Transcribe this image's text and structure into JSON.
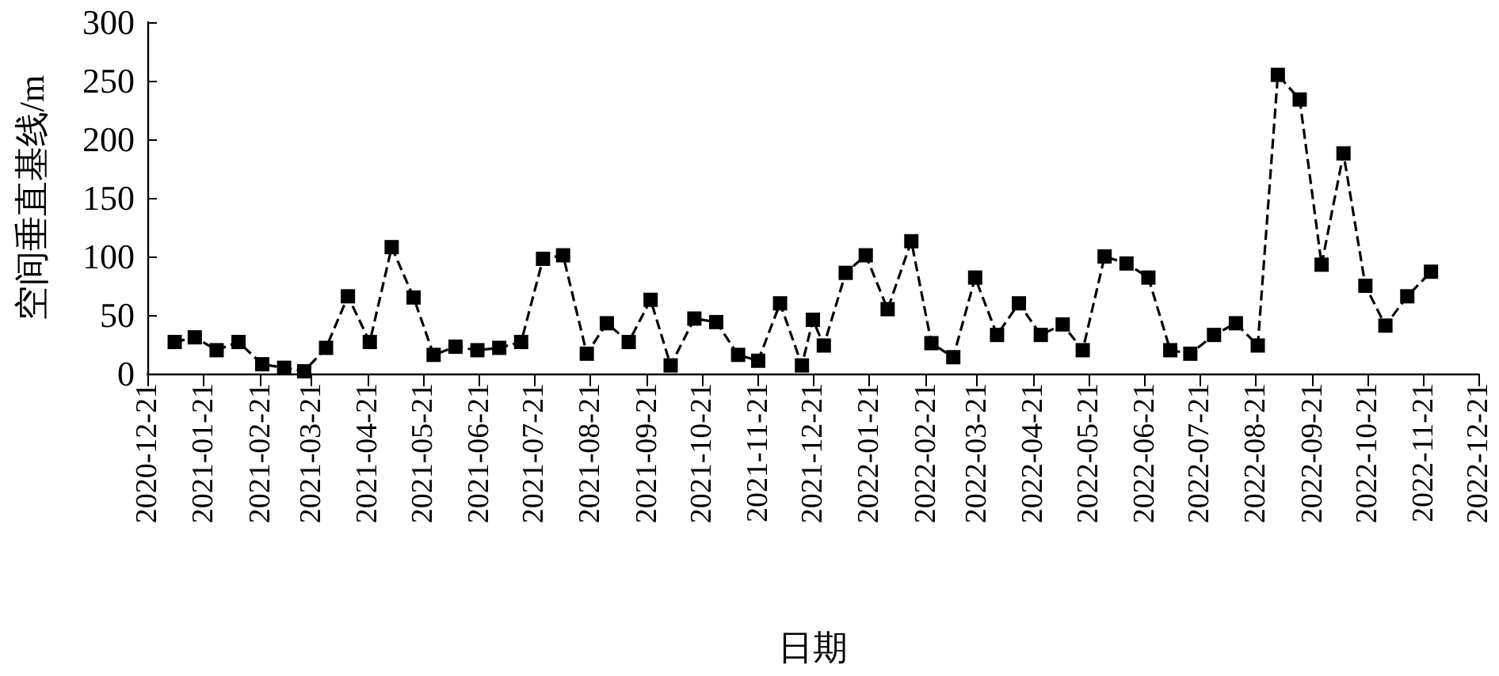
{
  "chart_data": {
    "type": "line",
    "xlabel": "日期",
    "ylabel": "空间垂直基线/m",
    "x": [
      "2021-01-05",
      "2021-01-16",
      "2021-01-28",
      "2021-02-09",
      "2021-02-22",
      "2021-03-06",
      "2021-03-17",
      "2021-03-29",
      "2021-04-10",
      "2021-04-22",
      "2021-05-04",
      "2021-05-16",
      "2021-05-27",
      "2021-06-08",
      "2021-06-20",
      "2021-07-02",
      "2021-07-14",
      "2021-07-26",
      "2021-08-06",
      "2021-08-19",
      "2021-08-30",
      "2021-09-11",
      "2021-09-23",
      "2021-10-04",
      "2021-10-17",
      "2021-10-29",
      "2021-11-10",
      "2021-11-21",
      "2021-12-03",
      "2021-12-15",
      "2021-12-21",
      "2021-12-27",
      "2022-01-08",
      "2022-01-19",
      "2022-01-31",
      "2022-02-13",
      "2022-02-24",
      "2022-03-08",
      "2022-03-20",
      "2022-04-01",
      "2022-04-13",
      "2022-04-25",
      "2022-05-07",
      "2022-05-18",
      "2022-05-30",
      "2022-06-11",
      "2022-06-23",
      "2022-07-05",
      "2022-07-16",
      "2022-07-29",
      "2022-08-10",
      "2022-08-22",
      "2022-09-02",
      "2022-09-14",
      "2022-09-26",
      "2022-10-08",
      "2022-10-20",
      "2022-10-31",
      "2022-11-12",
      "2022-11-25"
    ],
    "series": [
      {
        "color": "#000000",
        "values": [
          27,
          31,
          20,
          27,
          8,
          5,
          2,
          22,
          66,
          27,
          108,
          65,
          16,
          23,
          20,
          22,
          27,
          98,
          101,
          17,
          43,
          27,
          63,
          7,
          47,
          44,
          16,
          11,
          60,
          7,
          46,
          24,
          86,
          101,
          55,
          113,
          26,
          14,
          82,
          33,
          60,
          33,
          42,
          20,
          100,
          94,
          82,
          20,
          17,
          33,
          43,
          24,
          255,
          234,
          93,
          188,
          75,
          41,
          66,
          87
        ]
      }
    ],
    "xlim": [
      "2020-12-21",
      "2022-12-21"
    ],
    "xticks": [
      "2020-12-21",
      "2021-01-21",
      "2021-02-21",
      "2021-03-21",
      "2021-04-21",
      "2021-05-21",
      "2021-06-21",
      "2021-07-21",
      "2021-08-21",
      "2021-09-21",
      "2021-10-21",
      "2021-11-21",
      "2021-12-21",
      "2022-01-21",
      "2022-02-21",
      "2022-03-21",
      "2022-04-21",
      "2022-05-21",
      "2022-06-21",
      "2022-07-21",
      "2022-08-21",
      "2022-09-21",
      "2022-10-21",
      "2022-11-21",
      "2022-12-21"
    ],
    "ylim": [
      0,
      300
    ],
    "yticks": [
      0,
      50,
      100,
      150,
      200,
      250,
      300
    ],
    "grid": false,
    "marker": "square",
    "line_style": "dashed"
  }
}
